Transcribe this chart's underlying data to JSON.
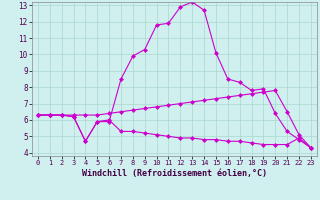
{
  "xlabel": "Windchill (Refroidissement éolien,°C)",
  "bg_color": "#cff0ee",
  "line_color": "#cc00cc",
  "xlim": [
    -0.5,
    23.5
  ],
  "ylim": [
    3.8,
    13.2
  ],
  "yticks": [
    4,
    5,
    6,
    7,
    8,
    9,
    10,
    11,
    12,
    13
  ],
  "xticks": [
    0,
    1,
    2,
    3,
    4,
    5,
    6,
    7,
    8,
    9,
    10,
    11,
    12,
    13,
    14,
    15,
    16,
    17,
    18,
    19,
    20,
    21,
    22,
    23
  ],
  "line1_x": [
    0,
    1,
    2,
    3,
    4,
    5,
    6,
    7,
    8,
    9,
    10,
    11,
    12,
    13,
    14,
    15,
    16,
    17,
    18,
    19,
    20,
    21,
    22,
    23
  ],
  "line1_y": [
    6.3,
    6.3,
    6.3,
    6.2,
    4.7,
    5.9,
    5.9,
    8.5,
    9.9,
    10.3,
    11.8,
    11.9,
    12.9,
    13.2,
    12.7,
    10.1,
    8.5,
    8.3,
    7.8,
    7.9,
    6.4,
    5.3,
    4.8,
    4.3
  ],
  "line2_x": [
    0,
    1,
    2,
    3,
    4,
    5,
    6,
    7,
    8,
    9,
    10,
    11,
    12,
    13,
    14,
    15,
    16,
    17,
    18,
    19,
    20,
    21,
    22,
    23
  ],
  "line2_y": [
    6.3,
    6.3,
    6.3,
    6.3,
    6.3,
    6.3,
    6.4,
    6.5,
    6.6,
    6.7,
    6.8,
    6.9,
    7.0,
    7.1,
    7.2,
    7.3,
    7.4,
    7.5,
    7.6,
    7.7,
    7.8,
    6.5,
    5.1,
    4.3
  ],
  "line3_x": [
    0,
    1,
    2,
    3,
    4,
    5,
    6,
    7,
    8,
    9,
    10,
    11,
    12,
    13,
    14,
    15,
    16,
    17,
    18,
    19,
    20,
    21,
    22,
    23
  ],
  "line3_y": [
    6.3,
    6.3,
    6.3,
    6.2,
    4.7,
    5.9,
    6.0,
    5.3,
    5.3,
    5.2,
    5.1,
    5.0,
    4.9,
    4.9,
    4.8,
    4.8,
    4.7,
    4.7,
    4.6,
    4.5,
    4.5,
    4.5,
    4.9,
    4.3
  ],
  "grid_color": "#aad8cc",
  "marker": "D",
  "markersize": 2.5,
  "linewidth": 0.8
}
